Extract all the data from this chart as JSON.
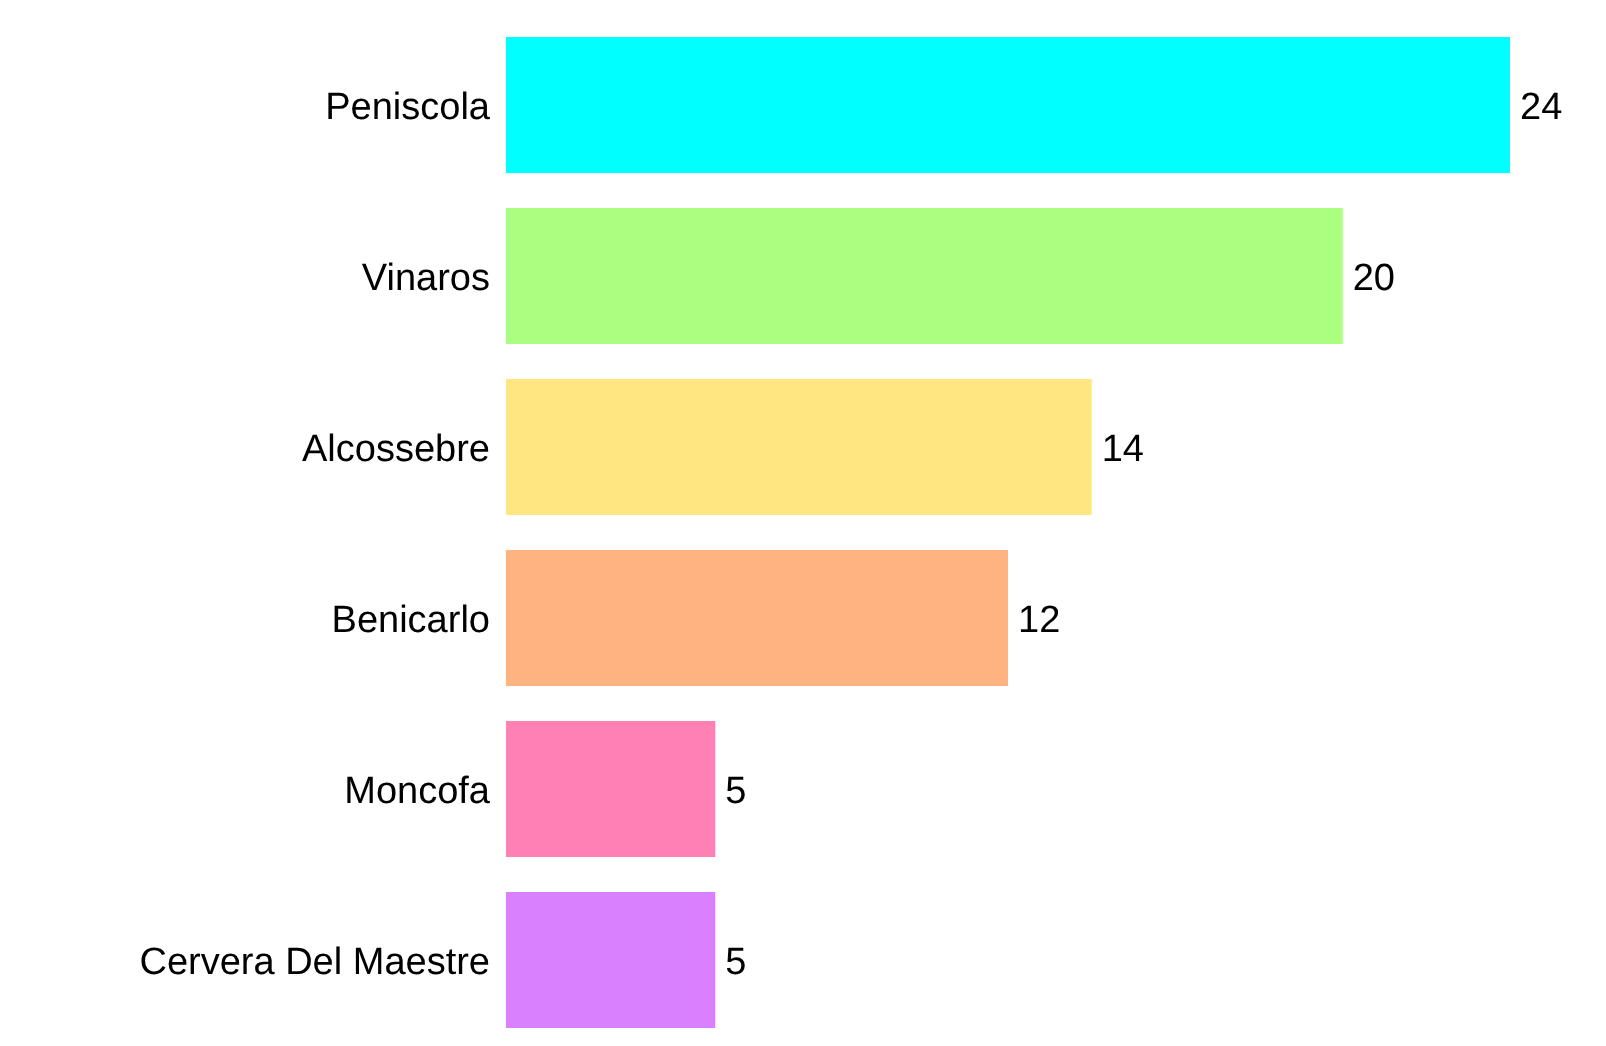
{
  "chart_data": {
    "type": "bar",
    "orientation": "horizontal",
    "categories": [
      "Peniscola",
      "Vinaros",
      "Alcossebre",
      "Benicarlo",
      "Moncofa",
      "Cervera Del Maestre"
    ],
    "values": [
      24,
      20,
      14,
      12,
      5,
      5
    ],
    "colors": [
      "#00ffff",
      "#aaff80",
      "#ffe680",
      "#ffb380",
      "#ff80b3",
      "#d980ff"
    ],
    "data_labels": true,
    "grid": false,
    "legend": false
  }
}
